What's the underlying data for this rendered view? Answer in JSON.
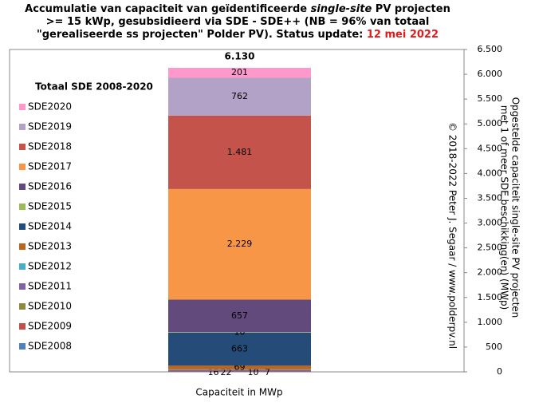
{
  "chart_data": {
    "type": "stacked_bar",
    "title_lines": [
      [
        "Accumulatie van capaciteit van geïdentificeerde ",
        "single-site",
        " PV projecten"
      ],
      [
        ">= 15 kWp, gesubsidieerd via SDE - SDE++ (NB = 96% van totaal"
      ],
      [
        "\"gerealiseerde ss projecten\" Polder PV). Status update: ",
        "12 mei 2022"
      ]
    ],
    "legend_title": "Totaal SDE 2008-2020",
    "x_label": "Capaciteit in MWp",
    "y_label": [
      "Opgestelde capaciteit single-site PV projecten",
      "met 1 of meer SDE beschikking(en) (MWp)"
    ],
    "copyright": "© 2018-2022  Peter J. Segaar / www.polderpv.nl",
    "total": 6130,
    "total_label": "6.130",
    "series": [
      {
        "name": "SDE2008",
        "color": "#4f81bd",
        "values": [
          16
        ]
      },
      {
        "name": "SDE2009",
        "color": "#c0504d",
        "values": [
          22
        ]
      },
      {
        "name": "SDE2010",
        "color": "#8c8a3e",
        "values": [
          10
        ]
      },
      {
        "name": "SDE2011",
        "color": "#8064a2",
        "values": [
          7
        ]
      },
      {
        "name": "SDE2012",
        "color": "#4bacc6",
        "values": [
          3
        ],
        "value_labels": [
          null
        ]
      },
      {
        "name": "SDE2013",
        "color": "#b9651f",
        "values": [
          69
        ]
      },
      {
        "name": "SDE2014",
        "color": "#254b78",
        "values": [
          663
        ]
      },
      {
        "name": "SDE2015",
        "color": "#9bbb59",
        "values": [
          10
        ]
      },
      {
        "name": "SDE2016",
        "color": "#624a7d",
        "values": [
          657
        ]
      },
      {
        "name": "SDE2017",
        "color": "#f79646",
        "values": [
          2229
        ],
        "value_labels": [
          "2.229"
        ]
      },
      {
        "name": "SDE2018",
        "color": "#c4534c",
        "values": [
          1481
        ],
        "value_labels": [
          "1.481"
        ]
      },
      {
        "name": "SDE2019",
        "color": "#b3a2c7",
        "values": [
          762
        ]
      },
      {
        "name": "SDE2020",
        "color": "#ff99cc",
        "values": [
          201
        ]
      }
    ],
    "ylim": [
      0,
      6500
    ],
    "yticks": [
      0,
      500,
      {
        "value": 1000,
        "label": "1.000"
      },
      {
        "value": 1500,
        "label": "1.500"
      },
      {
        "value": 2000,
        "label": "2.000"
      },
      {
        "value": 2500,
        "label": "2.500"
      },
      {
        "value": 3000,
        "label": "3.000"
      },
      {
        "value": 3500,
        "label": "3.500"
      },
      {
        "value": 4000,
        "label": "4.000"
      },
      {
        "value": 4500,
        "label": "4.500"
      },
      {
        "value": 5000,
        "label": "5.000"
      },
      {
        "value": 5500,
        "label": "5.500"
      },
      {
        "value": 6000,
        "label": "6.000"
      },
      {
        "value": 6500,
        "label": "6.500"
      }
    ]
  }
}
